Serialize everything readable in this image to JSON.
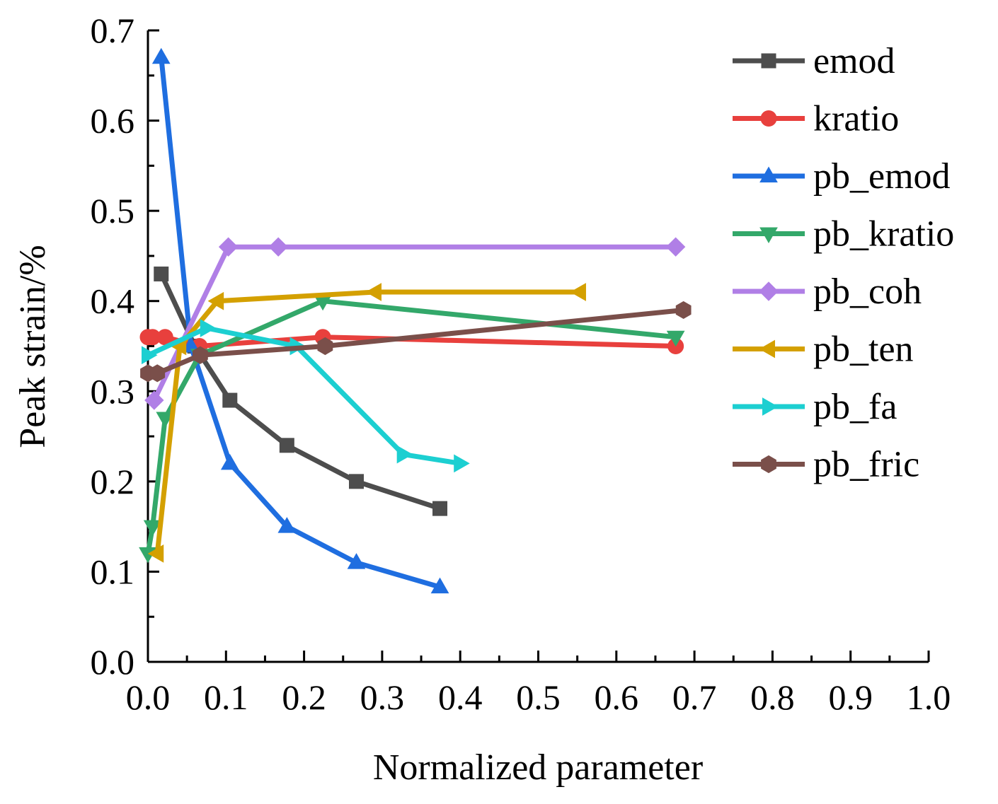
{
  "chart_data": {
    "type": "line",
    "title": "",
    "xlabel": "Normalized parameter",
    "ylabel": "Peak strain/%",
    "xlim": [
      0,
      1.0
    ],
    "ylim": [
      0,
      0.7
    ],
    "xticks": [
      "0.0",
      "0.1",
      "0.2",
      "0.3",
      "0.4",
      "0.5",
      "0.6",
      "0.7",
      "0.8",
      "0.9",
      "1.0"
    ],
    "yticks": [
      "0.0",
      "0.1",
      "0.2",
      "0.3",
      "0.4",
      "0.5",
      "0.6",
      "0.7"
    ],
    "grid": false,
    "legend_position": "top-right",
    "series": [
      {
        "name": "emod",
        "color": "#4d4d4d",
        "marker": "square",
        "x": [
          0.017,
          0.06,
          0.105,
          0.178,
          0.267,
          0.374
        ],
        "y": [
          0.43,
          0.35,
          0.29,
          0.24,
          0.2,
          0.17
        ]
      },
      {
        "name": "kratio",
        "color": "#e8403d",
        "marker": "circle",
        "x": [
          0.0,
          0.006,
          0.022,
          0.066,
          0.224,
          0.676
        ],
        "y": [
          0.36,
          0.36,
          0.36,
          0.35,
          0.36,
          0.35
        ]
      },
      {
        "name": "pb_emod",
        "color": "#1f6ee0",
        "marker": "triangle-up",
        "x": [
          0.017,
          0.055,
          0.105,
          0.178,
          0.267,
          0.374
        ],
        "y": [
          0.67,
          0.35,
          0.22,
          0.15,
          0.11,
          0.083
        ]
      },
      {
        "name": "pb_kratio",
        "color": "#33a86a",
        "marker": "triangle-down",
        "x": [
          0.0,
          0.006,
          0.022,
          0.066,
          0.224,
          0.676
        ],
        "y": [
          0.12,
          0.15,
          0.27,
          0.34,
          0.4,
          0.36
        ]
      },
      {
        "name": "pb_coh",
        "color": "#b07fe6",
        "marker": "diamond",
        "x": [
          0.008,
          0.103,
          0.167,
          0.676
        ],
        "y": [
          0.29,
          0.46,
          0.46,
          0.46
        ]
      },
      {
        "name": "pb_ten",
        "color": "#d4a000",
        "marker": "triangle-left",
        "x": [
          0.012,
          0.041,
          0.089,
          0.291,
          0.553
        ],
        "y": [
          0.12,
          0.35,
          0.4,
          0.41,
          0.41
        ]
      },
      {
        "name": "pb_fa",
        "color": "#1ccfd1",
        "marker": "triangle-right",
        "x": [
          0.0,
          0.075,
          0.19,
          0.327,
          0.4
        ],
        "y": [
          0.34,
          0.37,
          0.35,
          0.23,
          0.22
        ]
      },
      {
        "name": "pb_fric",
        "color": "#7a4f4a",
        "marker": "hexagon",
        "x": [
          0.0,
          0.012,
          0.067,
          0.227,
          0.686
        ],
        "y": [
          0.32,
          0.32,
          0.34,
          0.35,
          0.39
        ]
      }
    ]
  }
}
